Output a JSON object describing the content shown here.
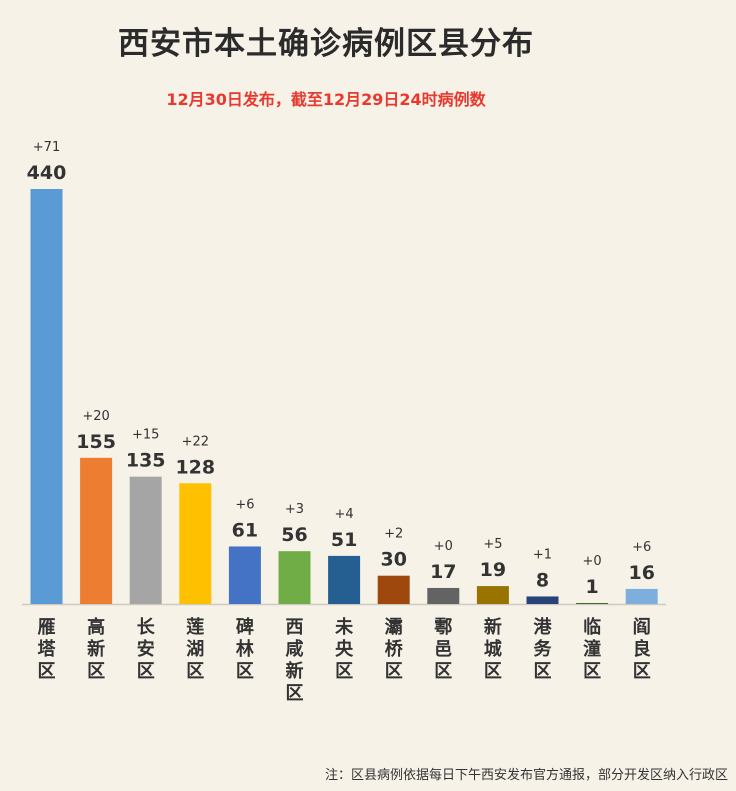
{
  "title": "西安市本土确诊病例区县分布",
  "subtitle": "12月30日发布，截至12月29日24时病例数",
  "footnote": "注：区县病例依据每日下午西安发布官方通报，部分开发区纳入行政区",
  "chart_data": {
    "type": "bar",
    "title": "西安市本土确诊病例区县分布",
    "subtitle": "12月30日发布，截至12月29日24时病例数",
    "categories": [
      "雁塔区",
      "高新区",
      "长安区",
      "莲湖区",
      "碑林区",
      "西咸新区",
      "未央区",
      "灞桥区",
      "鄠邑区",
      "新城区",
      "港务区",
      "临潼区",
      "阎良区"
    ],
    "values": [
      440,
      155,
      135,
      128,
      61,
      56,
      51,
      30,
      17,
      19,
      8,
      1,
      16
    ],
    "increments": [
      "+71",
      "+20",
      "+15",
      "+22",
      "+6",
      "+3",
      "+4",
      "+2",
      "+0",
      "+5",
      "+1",
      "+0",
      "+6"
    ],
    "colors": [
      "#5b9bd5",
      "#ed7d31",
      "#a5a5a5",
      "#ffc000",
      "#4472c4",
      "#70ad47",
      "#255e91",
      "#9e480e",
      "#636363",
      "#997300",
      "#264478",
      "#43682b",
      "#7cafdd"
    ],
    "ylim": [
      0,
      440
    ],
    "grid": false,
    "legend": "none"
  }
}
